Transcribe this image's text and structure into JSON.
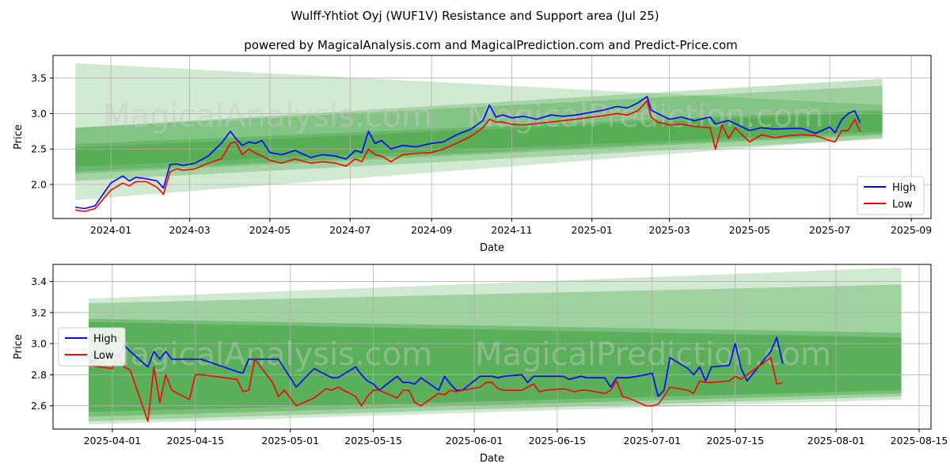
{
  "title": "Wulff-Yhtiot Oyj (WUF1V) Resistance and Support area (Jul 25)",
  "subtitle": "powered by MagicalAnalysis.com and MagicalPrediction.com and Predict-Price.com",
  "watermarks": [
    "MagicalAnalysis.com",
    "MagicalPrediction.com"
  ],
  "colors": {
    "high": "#0000ff",
    "low": "#ff0000",
    "band": "#2e9a2e",
    "grid": "#b0b0b0"
  },
  "chart_data": [
    {
      "type": "line",
      "xlabel": "Date",
      "ylabel": "Price",
      "grid": true,
      "legend_position": "lower-right",
      "xlim": [
        "2023-11-18",
        "2025-09-16"
      ],
      "ylim": [
        1.52,
        3.82
      ],
      "x_ticks": [
        "2024-01",
        "2024-03",
        "2024-05",
        "2024-07",
        "2024-09",
        "2024-11",
        "2025-01",
        "2025-03",
        "2025-05",
        "2025-07",
        "2025-09"
      ],
      "x_tick_dates": [
        "2024-01-01",
        "2024-03-01",
        "2024-05-01",
        "2024-07-01",
        "2024-09-01",
        "2024-11-01",
        "2025-01-01",
        "2025-03-01",
        "2025-05-01",
        "2025-07-01",
        "2025-09-01"
      ],
      "y_ticks": [
        "2.0",
        "2.5",
        "3.0",
        "3.5"
      ],
      "y_tick_values": [
        2.0,
        2.5,
        3.0,
        3.5
      ],
      "bands": [
        {
          "x": [
            "2023-12-05",
            "2025-08-10"
          ],
          "upper": [
            3.71,
            3.12
          ],
          "lower": [
            1.78,
            2.66
          ]
        },
        {
          "x": [
            "2023-12-05",
            "2025-08-10"
          ],
          "upper": [
            2.8,
            3.49
          ],
          "lower": [
            2.05,
            2.64
          ]
        },
        {
          "x": [
            "2023-12-05",
            "2025-08-10"
          ],
          "upper": [
            2.8,
            3.39
          ],
          "lower": [
            2.15,
            2.7
          ]
        },
        {
          "x": [
            "2023-12-05",
            "2025-08-10"
          ],
          "upper": [
            2.57,
            3.05
          ],
          "lower": [
            2.18,
            2.72
          ]
        },
        {
          "x": [
            "2023-12-05",
            "2025-08-10"
          ],
          "upper": [
            2.52,
            3.02
          ],
          "lower": [
            2.25,
            2.75
          ]
        }
      ],
      "series": [
        {
          "name": "High",
          "x": [
            "2023-12-05",
            "2023-12-12",
            "2023-12-20",
            "2024-01-01",
            "2024-01-10",
            "2024-01-15",
            "2024-01-20",
            "2024-01-28",
            "2024-02-05",
            "2024-02-10",
            "2024-02-15",
            "2024-02-20",
            "2024-02-25",
            "2024-03-05",
            "2024-03-15",
            "2024-03-25",
            "2024-04-01",
            "2024-04-05",
            "2024-04-10",
            "2024-04-15",
            "2024-04-20",
            "2024-04-25",
            "2024-05-01",
            "2024-05-10",
            "2024-05-20",
            "2024-06-01",
            "2024-06-10",
            "2024-06-20",
            "2024-06-28",
            "2024-07-05",
            "2024-07-10",
            "2024-07-15",
            "2024-07-20",
            "2024-07-25",
            "2024-08-01",
            "2024-08-10",
            "2024-08-20",
            "2024-09-01",
            "2024-09-10",
            "2024-09-20",
            "2024-10-01",
            "2024-10-10",
            "2024-10-15",
            "2024-10-20",
            "2024-10-25",
            "2024-11-01",
            "2024-11-10",
            "2024-11-20",
            "2024-12-01",
            "2024-12-10",
            "2024-12-20",
            "2025-01-01",
            "2025-01-10",
            "2025-01-20",
            "2025-01-28",
            "2025-02-05",
            "2025-02-12",
            "2025-02-15",
            "2025-02-20",
            "2025-03-01",
            "2025-03-10",
            "2025-03-20",
            "2025-04-01",
            "2025-04-05",
            "2025-04-10",
            "2025-04-15",
            "2025-04-20",
            "2025-05-01",
            "2025-05-10",
            "2025-05-20",
            "2025-06-01",
            "2025-06-10",
            "2025-06-20",
            "2025-07-01",
            "2025-07-05",
            "2025-07-10",
            "2025-07-15",
            "2025-07-20",
            "2025-07-24"
          ],
          "y": [
            1.68,
            1.66,
            1.7,
            2.02,
            2.12,
            2.05,
            2.1,
            2.08,
            2.05,
            1.95,
            2.28,
            2.29,
            2.27,
            2.3,
            2.4,
            2.58,
            2.75,
            2.65,
            2.55,
            2.6,
            2.58,
            2.62,
            2.45,
            2.42,
            2.48,
            2.38,
            2.42,
            2.4,
            2.36,
            2.48,
            2.45,
            2.75,
            2.58,
            2.62,
            2.5,
            2.55,
            2.53,
            2.58,
            2.6,
            2.7,
            2.78,
            2.9,
            3.12,
            2.95,
            2.98,
            2.94,
            2.96,
            2.92,
            2.98,
            2.96,
            2.98,
            3.02,
            3.05,
            3.1,
            3.08,
            3.15,
            3.24,
            3.05,
            3.0,
            2.92,
            2.95,
            2.9,
            2.95,
            2.85,
            2.88,
            2.9,
            2.86,
            2.76,
            2.8,
            2.78,
            2.79,
            2.79,
            2.72,
            2.81,
            2.73,
            2.91,
            3.0,
            3.04,
            2.87
          ]
        },
        {
          "name": "Low",
          "x": [
            "2023-12-05",
            "2023-12-12",
            "2023-12-20",
            "2024-01-01",
            "2024-01-10",
            "2024-01-15",
            "2024-01-20",
            "2024-01-28",
            "2024-02-05",
            "2024-02-10",
            "2024-02-15",
            "2024-02-20",
            "2024-02-25",
            "2024-03-05",
            "2024-03-15",
            "2024-03-25",
            "2024-04-01",
            "2024-04-05",
            "2024-04-10",
            "2024-04-15",
            "2024-04-20",
            "2024-04-25",
            "2024-05-01",
            "2024-05-10",
            "2024-05-20",
            "2024-06-01",
            "2024-06-10",
            "2024-06-20",
            "2024-06-28",
            "2024-07-05",
            "2024-07-10",
            "2024-07-15",
            "2024-07-20",
            "2024-07-25",
            "2024-08-01",
            "2024-08-10",
            "2024-08-20",
            "2024-09-01",
            "2024-09-10",
            "2024-09-20",
            "2024-10-01",
            "2024-10-10",
            "2024-10-15",
            "2024-10-20",
            "2024-10-25",
            "2024-11-01",
            "2024-11-10",
            "2024-11-20",
            "2024-12-01",
            "2024-12-10",
            "2024-12-20",
            "2025-01-01",
            "2025-01-10",
            "2025-01-20",
            "2025-01-28",
            "2025-02-05",
            "2025-02-12",
            "2025-02-15",
            "2025-02-20",
            "2025-03-01",
            "2025-03-10",
            "2025-03-20",
            "2025-04-01",
            "2025-04-05",
            "2025-04-10",
            "2025-04-15",
            "2025-04-20",
            "2025-05-01",
            "2025-05-10",
            "2025-05-20",
            "2025-06-01",
            "2025-06-10",
            "2025-06-20",
            "2025-07-01",
            "2025-07-05",
            "2025-07-10",
            "2025-07-15",
            "2025-07-20",
            "2025-07-24"
          ],
          "y": [
            1.64,
            1.62,
            1.66,
            1.92,
            2.02,
            1.98,
            2.04,
            2.04,
            1.96,
            1.86,
            2.18,
            2.22,
            2.2,
            2.22,
            2.3,
            2.36,
            2.58,
            2.6,
            2.42,
            2.5,
            2.44,
            2.4,
            2.34,
            2.3,
            2.36,
            2.3,
            2.32,
            2.3,
            2.26,
            2.36,
            2.32,
            2.5,
            2.42,
            2.4,
            2.32,
            2.42,
            2.44,
            2.45,
            2.5,
            2.58,
            2.68,
            2.8,
            2.92,
            2.88,
            2.88,
            2.85,
            2.84,
            2.86,
            2.88,
            2.9,
            2.92,
            2.95,
            2.97,
            3.0,
            2.98,
            3.04,
            3.18,
            2.95,
            2.88,
            2.84,
            2.85,
            2.82,
            2.8,
            2.5,
            2.84,
            2.65,
            2.8,
            2.6,
            2.7,
            2.66,
            2.69,
            2.7,
            2.69,
            2.62,
            2.6,
            2.76,
            2.76,
            2.92,
            2.75
          ]
        }
      ]
    },
    {
      "type": "line",
      "xlabel": "Date",
      "ylabel": "Price",
      "grid": true,
      "legend_position": "center-left",
      "xlim": [
        "2025-03-22",
        "2025-08-17"
      ],
      "ylim": [
        2.45,
        3.51
      ],
      "x_ticks": [
        "2025-04-01",
        "2025-04-15",
        "2025-05-01",
        "2025-05-15",
        "2025-06-01",
        "2025-06-15",
        "2025-07-01",
        "2025-07-15",
        "2025-08-01",
        "2025-08-15"
      ],
      "x_tick_dates": [
        "2025-04-01",
        "2025-04-15",
        "2025-05-01",
        "2025-05-15",
        "2025-06-01",
        "2025-06-15",
        "2025-07-01",
        "2025-07-15",
        "2025-08-01",
        "2025-08-15"
      ],
      "y_ticks": [
        "2.6",
        "2.8",
        "3.0",
        "3.2",
        "3.4"
      ],
      "y_tick_values": [
        2.6,
        2.8,
        3.0,
        3.2,
        3.4
      ],
      "bands": [
        {
          "x": [
            "2025-03-28",
            "2025-08-12"
          ],
          "upper": [
            3.29,
            3.49
          ],
          "lower": [
            2.48,
            2.64
          ]
        },
        {
          "x": [
            "2025-03-28",
            "2025-08-12"
          ],
          "upper": [
            3.26,
            3.38
          ],
          "lower": [
            2.5,
            2.66
          ]
        },
        {
          "x": [
            "2025-03-28",
            "2025-08-12"
          ],
          "upper": [
            3.16,
            3.07
          ],
          "lower": [
            2.53,
            2.68
          ]
        },
        {
          "x": [
            "2025-03-28",
            "2025-08-12"
          ],
          "upper": [
            3.14,
            3.04
          ],
          "lower": [
            2.56,
            2.7
          ]
        }
      ],
      "series": [
        {
          "name": "High",
          "x": [
            "2025-03-28",
            "2025-04-01",
            "2025-04-02",
            "2025-04-03",
            "2025-04-04",
            "2025-04-07",
            "2025-04-08",
            "2025-04-09",
            "2025-04-10",
            "2025-04-11",
            "2025-04-14",
            "2025-04-15",
            "2025-04-16",
            "2025-04-22",
            "2025-04-23",
            "2025-04-24",
            "2025-04-25",
            "2025-04-28",
            "2025-04-29",
            "2025-04-30",
            "2025-05-02",
            "2025-05-05",
            "2025-05-06",
            "2025-05-07",
            "2025-05-08",
            "2025-05-09",
            "2025-05-12",
            "2025-05-13",
            "2025-05-14",
            "2025-05-15",
            "2025-05-16",
            "2025-05-19",
            "2025-05-20",
            "2025-05-21",
            "2025-05-22",
            "2025-05-23",
            "2025-05-26",
            "2025-05-27",
            "2025-05-28",
            "2025-05-29",
            "2025-05-30",
            "2025-06-02",
            "2025-06-03",
            "2025-06-04",
            "2025-06-05",
            "2025-06-06",
            "2025-06-09",
            "2025-06-10",
            "2025-06-11",
            "2025-06-12",
            "2025-06-13",
            "2025-06-16",
            "2025-06-17",
            "2025-06-18",
            "2025-06-19",
            "2025-06-20",
            "2025-06-23",
            "2025-06-24",
            "2025-06-25",
            "2025-06-26",
            "2025-06-27",
            "2025-06-30",
            "2025-07-01",
            "2025-07-02",
            "2025-07-03",
            "2025-07-04",
            "2025-07-07",
            "2025-07-08",
            "2025-07-09",
            "2025-07-10",
            "2025-07-11",
            "2025-07-14",
            "2025-07-15",
            "2025-07-16",
            "2025-07-17",
            "2025-07-21",
            "2025-07-22",
            "2025-07-23"
          ],
          "y": [
            2.88,
            2.93,
            2.92,
            2.99,
            2.95,
            2.85,
            2.95,
            2.9,
            2.95,
            2.9,
            2.9,
            2.9,
            2.9,
            2.82,
            2.81,
            2.9,
            2.9,
            2.9,
            2.9,
            2.84,
            2.72,
            2.84,
            2.82,
            2.8,
            2.78,
            2.78,
            2.85,
            2.8,
            2.76,
            2.74,
            2.7,
            2.79,
            2.75,
            2.75,
            2.74,
            2.78,
            2.7,
            2.79,
            2.74,
            2.7,
            2.7,
            2.79,
            2.79,
            2.79,
            2.78,
            2.79,
            2.8,
            2.75,
            2.79,
            2.79,
            2.79,
            2.79,
            2.77,
            2.78,
            2.79,
            2.78,
            2.78,
            2.72,
            2.78,
            2.78,
            2.78,
            2.8,
            2.81,
            2.66,
            2.7,
            2.91,
            2.84,
            2.8,
            2.85,
            2.76,
            2.85,
            2.86,
            3.0,
            2.84,
            2.76,
            2.95,
            3.04,
            2.87
          ]
        },
        {
          "name": "Low",
          "x": [
            "2025-03-28",
            "2025-04-01",
            "2025-04-02",
            "2025-04-03",
            "2025-04-04",
            "2025-04-07",
            "2025-04-08",
            "2025-04-09",
            "2025-04-10",
            "2025-04-11",
            "2025-04-14",
            "2025-04-15",
            "2025-04-16",
            "2025-04-22",
            "2025-04-23",
            "2025-04-24",
            "2025-04-25",
            "2025-04-28",
            "2025-04-29",
            "2025-04-30",
            "2025-05-02",
            "2025-05-05",
            "2025-05-06",
            "2025-05-07",
            "2025-05-08",
            "2025-05-09",
            "2025-05-12",
            "2025-05-13",
            "2025-05-14",
            "2025-05-15",
            "2025-05-16",
            "2025-05-19",
            "2025-05-20",
            "2025-05-21",
            "2025-05-22",
            "2025-05-23",
            "2025-05-26",
            "2025-05-27",
            "2025-05-28",
            "2025-05-29",
            "2025-05-30",
            "2025-06-02",
            "2025-06-03",
            "2025-06-04",
            "2025-06-05",
            "2025-06-06",
            "2025-06-09",
            "2025-06-10",
            "2025-06-11",
            "2025-06-12",
            "2025-06-13",
            "2025-06-16",
            "2025-06-17",
            "2025-06-18",
            "2025-06-19",
            "2025-06-20",
            "2025-06-23",
            "2025-06-24",
            "2025-06-25",
            "2025-06-26",
            "2025-06-27",
            "2025-06-30",
            "2025-07-01",
            "2025-07-02",
            "2025-07-03",
            "2025-07-04",
            "2025-07-07",
            "2025-07-08",
            "2025-07-09",
            "2025-07-10",
            "2025-07-11",
            "2025-07-14",
            "2025-07-15",
            "2025-07-16",
            "2025-07-17",
            "2025-07-21",
            "2025-07-22",
            "2025-07-23"
          ],
          "y": [
            2.86,
            2.84,
            2.93,
            2.85,
            2.83,
            2.5,
            2.85,
            2.62,
            2.8,
            2.7,
            2.64,
            2.8,
            2.8,
            2.77,
            2.69,
            2.7,
            2.9,
            2.75,
            2.66,
            2.7,
            2.6,
            2.65,
            2.68,
            2.71,
            2.7,
            2.72,
            2.66,
            2.6,
            2.66,
            2.7,
            2.7,
            2.65,
            2.7,
            2.7,
            2.62,
            2.6,
            2.68,
            2.67,
            2.7,
            2.69,
            2.7,
            2.72,
            2.75,
            2.75,
            2.71,
            2.7,
            2.7,
            2.72,
            2.74,
            2.69,
            2.7,
            2.71,
            2.7,
            2.69,
            2.7,
            2.7,
            2.68,
            2.7,
            2.76,
            2.66,
            2.65,
            2.6,
            2.6,
            2.61,
            2.66,
            2.72,
            2.7,
            2.68,
            2.76,
            2.75,
            2.75,
            2.76,
            2.79,
            2.77,
            2.8,
            2.91,
            2.74,
            2.75
          ]
        }
      ]
    }
  ]
}
